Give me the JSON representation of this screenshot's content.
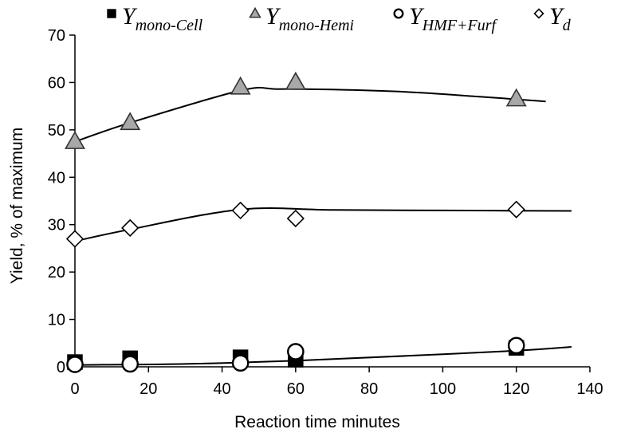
{
  "chart_data": {
    "type": "scatter",
    "title": "",
    "xlabel": "Reaction time minutes",
    "ylabel": "Yield, % of maximum",
    "xlim": [
      0,
      140
    ],
    "ylim": [
      0,
      70
    ],
    "xticks": [
      "0",
      "20",
      "40",
      "60",
      "80",
      "100",
      "120",
      "140"
    ],
    "yticks": [
      "0",
      "10",
      "20",
      "30",
      "40",
      "50",
      "60",
      "70"
    ],
    "grid": false,
    "legend_position": "top",
    "series": [
      {
        "key": "cell",
        "name_main": "Y",
        "name_sub": "mono-Cell",
        "marker": "square",
        "color": "#000000",
        "points": [
          [
            0,
            1.0
          ],
          [
            15,
            1.8
          ],
          [
            45,
            2.0
          ],
          [
            60,
            1.5
          ],
          [
            120,
            4.0
          ]
        ]
      },
      {
        "key": "hemi",
        "name_main": "Y",
        "name_sub": "mono-Hemi",
        "marker": "triangle",
        "color": "#a8a8a8",
        "points": [
          [
            0,
            47.5
          ],
          [
            15,
            51.5
          ],
          [
            45,
            59.0
          ],
          [
            60,
            60.0
          ],
          [
            120,
            56.5
          ]
        ],
        "trend": [
          [
            0,
            47.5
          ],
          [
            15,
            51.5
          ],
          [
            45,
            58.3
          ],
          [
            55,
            58.6
          ],
          [
            70,
            58.5
          ],
          [
            90,
            58.0
          ],
          [
            110,
            57.0
          ],
          [
            128,
            56.0
          ]
        ]
      },
      {
        "key": "hmf",
        "name_main": "Y",
        "name_sub": "HMF+Furf",
        "marker": "circle",
        "color": "#000000",
        "points": [
          [
            0,
            0.5
          ],
          [
            15,
            0.6
          ],
          [
            45,
            0.8
          ],
          [
            60,
            3.2
          ],
          [
            120,
            4.5
          ]
        ]
      },
      {
        "key": "d",
        "name_main": "Y",
        "name_sub": "d",
        "marker": "diamond",
        "color": "#000000",
        "points": [
          [
            0,
            27.0
          ],
          [
            15,
            29.3
          ],
          [
            45,
            33.0
          ],
          [
            60,
            31.3
          ],
          [
            120,
            33.2
          ]
        ],
        "trend": [
          [
            0,
            26.5
          ],
          [
            15,
            29.0
          ],
          [
            45,
            33.2
          ],
          [
            70,
            33.1
          ],
          [
            100,
            33.0
          ],
          [
            135,
            32.9
          ]
        ]
      }
    ],
    "shared_trend": [
      [
        0,
        0.4
      ],
      [
        30,
        0.6
      ],
      [
        60,
        1.3
      ],
      [
        90,
        2.3
      ],
      [
        120,
        3.4
      ],
      [
        135,
        4.2
      ]
    ]
  }
}
